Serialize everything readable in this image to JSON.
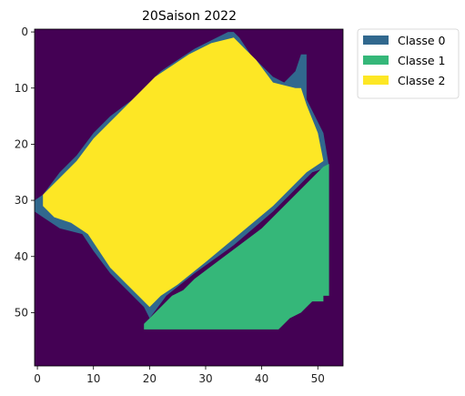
{
  "chart_data": {
    "type": "heatmap",
    "title": "20Saison 2022",
    "xlabel": "",
    "ylabel": "",
    "grid": false,
    "x_range": [
      -0.5,
      54.5
    ],
    "y_range": [
      -0.5,
      59.5
    ],
    "x_ticks": [
      "0",
      "10",
      "20",
      "30",
      "40",
      "50"
    ],
    "y_ticks": [
      "0",
      "10",
      "20",
      "30",
      "40",
      "50"
    ],
    "legend_position": "outside-right",
    "legend": [
      {
        "label": "Classe 0",
        "color": "#31688e"
      },
      {
        "label": "Classe 1",
        "color": "#35b779"
      },
      {
        "label": "Classe 2",
        "color": "#fde725"
      }
    ],
    "background_color": "#440154",
    "regions": [
      {
        "class": "Classe 0",
        "color": "#31688e",
        "polygon": [
          [
            35,
            0
          ],
          [
            36,
            1
          ],
          [
            38,
            4
          ],
          [
            42,
            8
          ],
          [
            44,
            9
          ],
          [
            46,
            7
          ],
          [
            47,
            4
          ],
          [
            48,
            4
          ],
          [
            48,
            12
          ],
          [
            51,
            18
          ],
          [
            52,
            24
          ],
          [
            49,
            25
          ],
          [
            42,
            32
          ],
          [
            35,
            38
          ],
          [
            28,
            43
          ],
          [
            23,
            47
          ],
          [
            20,
            51
          ],
          [
            19,
            49
          ],
          [
            16,
            46
          ],
          [
            13,
            43
          ],
          [
            10,
            39
          ],
          [
            8,
            36
          ],
          [
            4,
            35
          ],
          [
            1,
            33
          ],
          [
            -0.5,
            32
          ],
          [
            -0.5,
            30
          ],
          [
            1,
            29
          ],
          [
            4,
            25
          ],
          [
            7,
            22
          ],
          [
            10,
            18
          ],
          [
            13,
            15
          ],
          [
            17,
            12
          ],
          [
            20,
            9
          ],
          [
            22,
            7
          ],
          [
            25,
            5
          ],
          [
            28,
            3
          ],
          [
            32,
            1
          ],
          [
            34,
            0
          ]
        ]
      },
      {
        "class": "Classe 2",
        "color": "#fde725",
        "polygon": [
          [
            35,
            1
          ],
          [
            37,
            3
          ],
          [
            39,
            5
          ],
          [
            42,
            9
          ],
          [
            46,
            10
          ],
          [
            47,
            10
          ],
          [
            48,
            13
          ],
          [
            50,
            18
          ],
          [
            51,
            23
          ],
          [
            48,
            25
          ],
          [
            42,
            31
          ],
          [
            36,
            36
          ],
          [
            30,
            41
          ],
          [
            25,
            45
          ],
          [
            22,
            47
          ],
          [
            20,
            49
          ],
          [
            18,
            47
          ],
          [
            16,
            45
          ],
          [
            13,
            42
          ],
          [
            11,
            39
          ],
          [
            9,
            36
          ],
          [
            6,
            34
          ],
          [
            3,
            33
          ],
          [
            1,
            31
          ],
          [
            1,
            29
          ],
          [
            4,
            26
          ],
          [
            7,
            23
          ],
          [
            10,
            19
          ],
          [
            13,
            16
          ],
          [
            16,
            13
          ],
          [
            19,
            10
          ],
          [
            21,
            8
          ],
          [
            24,
            6
          ],
          [
            27,
            4
          ],
          [
            31,
            2
          ]
        ]
      },
      {
        "class": "Classe 1",
        "color": "#35b779",
        "polygon": [
          [
            52,
            23.5
          ],
          [
            52,
            47
          ],
          [
            51,
            47
          ],
          [
            51,
            48
          ],
          [
            49,
            48
          ],
          [
            48,
            49
          ],
          [
            47,
            50
          ],
          [
            45,
            51
          ],
          [
            44,
            52
          ],
          [
            43,
            53
          ],
          [
            19,
            53
          ],
          [
            19,
            52
          ],
          [
            20,
            51
          ],
          [
            22,
            49
          ],
          [
            24,
            47
          ],
          [
            26,
            46
          ],
          [
            28,
            44
          ],
          [
            32,
            41
          ],
          [
            36,
            38
          ],
          [
            40,
            35
          ],
          [
            43,
            32
          ],
          [
            46,
            29
          ],
          [
            49,
            26
          ],
          [
            51,
            24
          ]
        ]
      }
    ]
  }
}
